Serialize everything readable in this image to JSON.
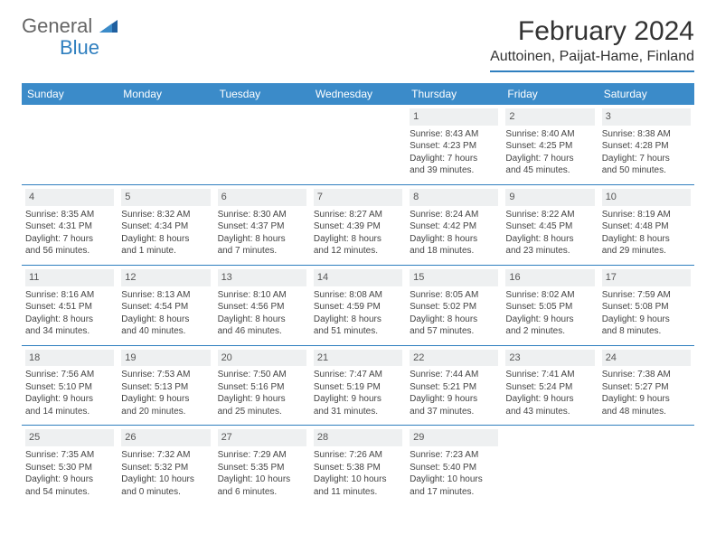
{
  "logo": {
    "general": "General",
    "blue": "Blue"
  },
  "title": "February 2024",
  "location": "Auttoinen, Paijat-Hame, Finland",
  "colors": {
    "header_bg": "#3b8bc9",
    "accent": "#2f7fbf",
    "day_bg": "#eef0f1",
    "text": "#444444"
  },
  "weekdays": [
    "Sunday",
    "Monday",
    "Tuesday",
    "Wednesday",
    "Thursday",
    "Friday",
    "Saturday"
  ],
  "weeks": [
    [
      null,
      null,
      null,
      null,
      {
        "n": "1",
        "sr": "Sunrise: 8:43 AM",
        "ss": "Sunset: 4:23 PM",
        "d1": "Daylight: 7 hours",
        "d2": "and 39 minutes."
      },
      {
        "n": "2",
        "sr": "Sunrise: 8:40 AM",
        "ss": "Sunset: 4:25 PM",
        "d1": "Daylight: 7 hours",
        "d2": "and 45 minutes."
      },
      {
        "n": "3",
        "sr": "Sunrise: 8:38 AM",
        "ss": "Sunset: 4:28 PM",
        "d1": "Daylight: 7 hours",
        "d2": "and 50 minutes."
      }
    ],
    [
      {
        "n": "4",
        "sr": "Sunrise: 8:35 AM",
        "ss": "Sunset: 4:31 PM",
        "d1": "Daylight: 7 hours",
        "d2": "and 56 minutes."
      },
      {
        "n": "5",
        "sr": "Sunrise: 8:32 AM",
        "ss": "Sunset: 4:34 PM",
        "d1": "Daylight: 8 hours",
        "d2": "and 1 minute."
      },
      {
        "n": "6",
        "sr": "Sunrise: 8:30 AM",
        "ss": "Sunset: 4:37 PM",
        "d1": "Daylight: 8 hours",
        "d2": "and 7 minutes."
      },
      {
        "n": "7",
        "sr": "Sunrise: 8:27 AM",
        "ss": "Sunset: 4:39 PM",
        "d1": "Daylight: 8 hours",
        "d2": "and 12 minutes."
      },
      {
        "n": "8",
        "sr": "Sunrise: 8:24 AM",
        "ss": "Sunset: 4:42 PM",
        "d1": "Daylight: 8 hours",
        "d2": "and 18 minutes."
      },
      {
        "n": "9",
        "sr": "Sunrise: 8:22 AM",
        "ss": "Sunset: 4:45 PM",
        "d1": "Daylight: 8 hours",
        "d2": "and 23 minutes."
      },
      {
        "n": "10",
        "sr": "Sunrise: 8:19 AM",
        "ss": "Sunset: 4:48 PM",
        "d1": "Daylight: 8 hours",
        "d2": "and 29 minutes."
      }
    ],
    [
      {
        "n": "11",
        "sr": "Sunrise: 8:16 AM",
        "ss": "Sunset: 4:51 PM",
        "d1": "Daylight: 8 hours",
        "d2": "and 34 minutes."
      },
      {
        "n": "12",
        "sr": "Sunrise: 8:13 AM",
        "ss": "Sunset: 4:54 PM",
        "d1": "Daylight: 8 hours",
        "d2": "and 40 minutes."
      },
      {
        "n": "13",
        "sr": "Sunrise: 8:10 AM",
        "ss": "Sunset: 4:56 PM",
        "d1": "Daylight: 8 hours",
        "d2": "and 46 minutes."
      },
      {
        "n": "14",
        "sr": "Sunrise: 8:08 AM",
        "ss": "Sunset: 4:59 PM",
        "d1": "Daylight: 8 hours",
        "d2": "and 51 minutes."
      },
      {
        "n": "15",
        "sr": "Sunrise: 8:05 AM",
        "ss": "Sunset: 5:02 PM",
        "d1": "Daylight: 8 hours",
        "d2": "and 57 minutes."
      },
      {
        "n": "16",
        "sr": "Sunrise: 8:02 AM",
        "ss": "Sunset: 5:05 PM",
        "d1": "Daylight: 9 hours",
        "d2": "and 2 minutes."
      },
      {
        "n": "17",
        "sr": "Sunrise: 7:59 AM",
        "ss": "Sunset: 5:08 PM",
        "d1": "Daylight: 9 hours",
        "d2": "and 8 minutes."
      }
    ],
    [
      {
        "n": "18",
        "sr": "Sunrise: 7:56 AM",
        "ss": "Sunset: 5:10 PM",
        "d1": "Daylight: 9 hours",
        "d2": "and 14 minutes."
      },
      {
        "n": "19",
        "sr": "Sunrise: 7:53 AM",
        "ss": "Sunset: 5:13 PM",
        "d1": "Daylight: 9 hours",
        "d2": "and 20 minutes."
      },
      {
        "n": "20",
        "sr": "Sunrise: 7:50 AM",
        "ss": "Sunset: 5:16 PM",
        "d1": "Daylight: 9 hours",
        "d2": "and 25 minutes."
      },
      {
        "n": "21",
        "sr": "Sunrise: 7:47 AM",
        "ss": "Sunset: 5:19 PM",
        "d1": "Daylight: 9 hours",
        "d2": "and 31 minutes."
      },
      {
        "n": "22",
        "sr": "Sunrise: 7:44 AM",
        "ss": "Sunset: 5:21 PM",
        "d1": "Daylight: 9 hours",
        "d2": "and 37 minutes."
      },
      {
        "n": "23",
        "sr": "Sunrise: 7:41 AM",
        "ss": "Sunset: 5:24 PM",
        "d1": "Daylight: 9 hours",
        "d2": "and 43 minutes."
      },
      {
        "n": "24",
        "sr": "Sunrise: 7:38 AM",
        "ss": "Sunset: 5:27 PM",
        "d1": "Daylight: 9 hours",
        "d2": "and 48 minutes."
      }
    ],
    [
      {
        "n": "25",
        "sr": "Sunrise: 7:35 AM",
        "ss": "Sunset: 5:30 PM",
        "d1": "Daylight: 9 hours",
        "d2": "and 54 minutes."
      },
      {
        "n": "26",
        "sr": "Sunrise: 7:32 AM",
        "ss": "Sunset: 5:32 PM",
        "d1": "Daylight: 10 hours",
        "d2": "and 0 minutes."
      },
      {
        "n": "27",
        "sr": "Sunrise: 7:29 AM",
        "ss": "Sunset: 5:35 PM",
        "d1": "Daylight: 10 hours",
        "d2": "and 6 minutes."
      },
      {
        "n": "28",
        "sr": "Sunrise: 7:26 AM",
        "ss": "Sunset: 5:38 PM",
        "d1": "Daylight: 10 hours",
        "d2": "and 11 minutes."
      },
      {
        "n": "29",
        "sr": "Sunrise: 7:23 AM",
        "ss": "Sunset: 5:40 PM",
        "d1": "Daylight: 10 hours",
        "d2": "and 17 minutes."
      },
      null,
      null
    ]
  ]
}
